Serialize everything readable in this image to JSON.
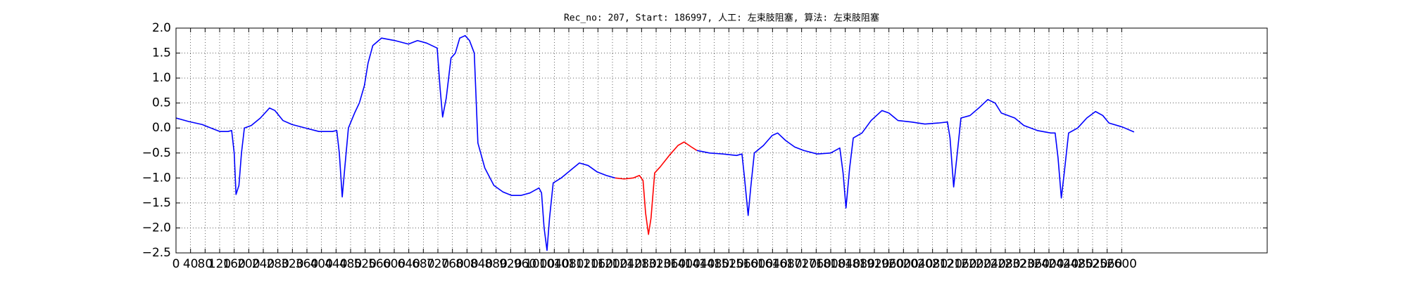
{
  "chart_data": {
    "type": "line",
    "title": "Rec_no: 207, Start: 186997, 人工: 左束肢阻塞, 算法: 左束肢阻塞",
    "xlim": [
      0,
      3000
    ],
    "xticks": [
      0,
      40,
      80,
      120,
      160,
      200,
      240,
      280,
      320,
      360,
      400,
      440,
      480,
      520,
      560,
      600,
      640,
      680,
      720,
      760,
      800,
      840,
      880,
      920,
      960,
      1000,
      1040,
      1080,
      1120,
      1160,
      1200,
      1240,
      1280,
      1320,
      1360,
      1400,
      1440,
      1480,
      1520,
      1560,
      1600,
      1640,
      1680,
      1720,
      1760,
      1800,
      1840,
      1880,
      1920,
      1960,
      2000,
      2040,
      2080,
      2120,
      2160,
      2200,
      2240,
      2280,
      2320,
      2360,
      2400,
      2440,
      2480,
      2520,
      2560,
      2600
    ],
    "ylim": [
      -2.5,
      2.0
    ],
    "yticks": [
      {
        "value": 2.0,
        "label": "2.0"
      },
      1.5,
      {
        "value": 1.0,
        "label": "1.0"
      },
      0.5,
      {
        "value": 0.0,
        "label": "0.0"
      },
      {
        "value": -0.5,
        "label": "−0.5"
      },
      {
        "value": -1.0,
        "label": "−1.0"
      },
      {
        "value": -1.5,
        "label": "−1.5"
      },
      {
        "value": -2.0,
        "label": "−2.0"
      },
      {
        "value": -2.5,
        "label": "−2.5"
      }
    ],
    "grid": true,
    "series": [
      {
        "color": "#0000ff",
        "x": [
          0,
          35,
          72,
          96,
          121,
          143,
          153,
          160,
          165,
          173,
          180,
          188,
          207,
          232,
          257,
          272,
          294,
          319,
          356,
          393,
          430,
          442,
          449,
          457,
          464,
          474,
          491,
          504,
          518,
          528,
          541,
          565,
          602,
          639,
          664,
          689,
          718,
          726,
          733,
          743,
          756,
          768,
          780,
          795,
          807,
          820,
          830,
          849,
          874,
          899,
          923,
          948,
          973,
          998,
          1005,
          1012,
          1020,
          1027,
          1037,
          1059,
          1084,
          1109,
          1133,
          1158,
          1183,
          1207,
          1300,
          1432,
          1467,
          1504,
          1541,
          1556,
          1563,
          1573,
          1580,
          1590,
          1615,
          1639,
          1654,
          1676,
          1701,
          1726,
          1763,
          1800,
          1825,
          1834,
          1842,
          1852,
          1862,
          1886,
          1911,
          1941,
          1960,
          1985,
          2022,
          2059,
          2096,
          2121,
          2128,
          2138,
          2148,
          2158,
          2183,
          2207,
          2232,
          2252,
          2269,
          2306,
          2331,
          2368,
          2405,
          2417,
          2425,
          2434,
          2442,
          2454,
          2479,
          2504,
          2528,
          2548,
          2565,
          2602,
          2634
        ],
        "values": [
          0.2,
          0.13,
          0.07,
          0.0,
          -0.07,
          -0.07,
          -0.05,
          -0.5,
          -1.33,
          -1.15,
          -0.5,
          0.0,
          0.05,
          0.2,
          0.4,
          0.35,
          0.15,
          0.07,
          0.0,
          -0.07,
          -0.07,
          -0.05,
          -0.5,
          -1.38,
          -0.8,
          0.0,
          0.3,
          0.5,
          0.85,
          1.3,
          1.65,
          1.8,
          1.75,
          1.68,
          1.75,
          1.7,
          1.6,
          0.8,
          0.22,
          0.6,
          1.4,
          1.5,
          1.8,
          1.85,
          1.75,
          1.5,
          -0.3,
          -0.8,
          -1.15,
          -1.28,
          -1.35,
          -1.35,
          -1.3,
          -1.2,
          -1.3,
          -2.0,
          -2.45,
          -1.8,
          -1.1,
          -1.0,
          -0.85,
          -0.7,
          -0.75,
          -0.88,
          -0.95,
          -1.0,
          null,
          -0.45,
          -0.5,
          -0.52,
          -0.55,
          -0.52,
          -1.0,
          -1.75,
          -1.2,
          -0.5,
          -0.35,
          -0.15,
          -0.1,
          -0.25,
          -0.38,
          -0.45,
          -0.52,
          -0.5,
          -0.4,
          -0.9,
          -1.6,
          -0.8,
          -0.2,
          -0.1,
          0.15,
          0.35,
          0.3,
          0.15,
          0.12,
          0.08,
          0.1,
          0.12,
          -0.2,
          -1.18,
          -0.5,
          0.2,
          0.25,
          0.4,
          0.57,
          0.5,
          0.3,
          0.2,
          0.05,
          -0.05,
          -0.1,
          -0.1,
          -0.6,
          -1.4,
          -0.9,
          -0.1,
          0.0,
          0.2,
          0.33,
          0.25,
          0.1,
          0.02,
          -0.08
        ]
      },
      {
        "color": "#ff0000",
        "x": [
          1207,
          1232,
          1257,
          1274,
          1284,
          1291,
          1299,
          1306,
          1316,
          1331,
          1356,
          1380,
          1397,
          1417,
          1432
        ],
        "values": [
          -1.0,
          -1.02,
          -1.0,
          -0.95,
          -1.05,
          -1.7,
          -2.13,
          -1.8,
          -0.9,
          -0.78,
          -0.55,
          -0.35,
          -0.28,
          -0.38,
          -0.45
        ]
      }
    ]
  }
}
